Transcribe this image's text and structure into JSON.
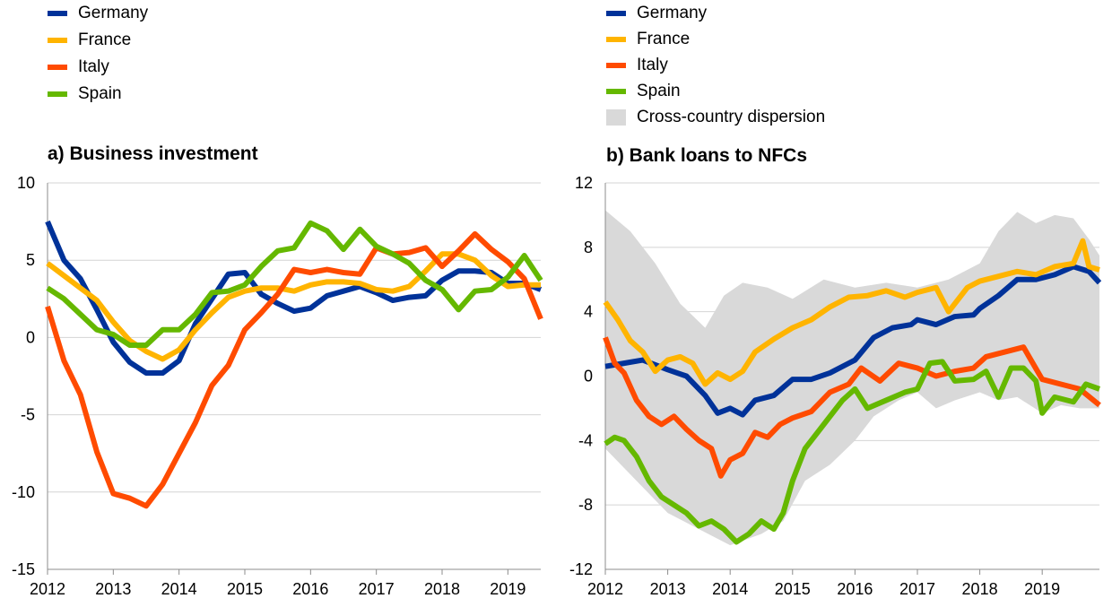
{
  "chart_data": [
    {
      "type": "line",
      "title": "a) Business investment",
      "ylim": [
        -15,
        10
      ],
      "yticks": [
        10,
        5,
        0,
        -5,
        -10,
        -15
      ],
      "xlim": [
        2012,
        2019.5
      ],
      "xticks": [
        2012,
        2013,
        2014,
        2015,
        2016,
        2017,
        2018,
        2019
      ],
      "legend": [
        "Germany",
        "France",
        "Italy",
        "Spain"
      ],
      "x": [
        2012,
        2012.25,
        2012.5,
        2012.75,
        2013,
        2013.25,
        2013.5,
        2013.75,
        2014,
        2014.25,
        2014.5,
        2014.75,
        2015,
        2015.25,
        2015.5,
        2015.75,
        2016,
        2016.25,
        2016.5,
        2016.75,
        2017,
        2017.25,
        2017.5,
        2017.75,
        2018,
        2018.25,
        2018.5,
        2018.75,
        2019,
        2019.25,
        2019.5
      ],
      "series": [
        {
          "name": "Germany",
          "color": "#003299",
          "values": [
            7.5,
            5.0,
            3.8,
            1.8,
            -0.3,
            -1.6,
            -2.3,
            -2.3,
            -1.5,
            0.9,
            2.5,
            4.1,
            4.2,
            2.8,
            2.2,
            1.7,
            1.9,
            2.7,
            3.0,
            3.3,
            2.9,
            2.4,
            2.6,
            2.7,
            3.7,
            4.3,
            4.3,
            4.2,
            3.5,
            3.5,
            3.1
          ]
        },
        {
          "name": "France",
          "color": "#FFB400",
          "values": [
            4.8,
            4.0,
            3.2,
            2.4,
            1.0,
            -0.2,
            -0.9,
            -1.4,
            -0.8,
            0.5,
            1.6,
            2.6,
            3.0,
            3.2,
            3.2,
            3.0,
            3.4,
            3.6,
            3.6,
            3.5,
            3.1,
            3.0,
            3.3,
            4.3,
            5.4,
            5.4,
            5.0,
            4.0,
            3.3,
            3.4,
            3.4
          ]
        },
        {
          "name": "Italy",
          "color": "#FF4B00",
          "values": [
            2.0,
            -1.5,
            -3.7,
            -7.4,
            -10.1,
            -10.4,
            -10.9,
            -9.5,
            -7.5,
            -5.5,
            -3.1,
            -1.8,
            0.5,
            1.6,
            2.8,
            4.4,
            4.2,
            4.4,
            4.2,
            4.1,
            5.8,
            5.4,
            5.5,
            5.8,
            4.6,
            5.6,
            6.7,
            5.7,
            4.9,
            3.8,
            1.2
          ]
        },
        {
          "name": "Spain",
          "color": "#65B800",
          "values": [
            3.2,
            2.5,
            1.5,
            0.5,
            0.2,
            -0.5,
            -0.5,
            0.5,
            0.5,
            1.5,
            2.9,
            3.0,
            3.4,
            4.6,
            5.6,
            5.8,
            7.4,
            6.9,
            5.7,
            7.0,
            5.9,
            5.4,
            4.8,
            3.7,
            3.1,
            1.8,
            3.0,
            3.1,
            3.9,
            5.3,
            3.7
          ]
        }
      ]
    },
    {
      "type": "line",
      "title": "b) Bank loans to NFCs",
      "ylim": [
        -12,
        12
      ],
      "yticks": [
        12,
        8,
        4,
        0,
        -4,
        -8,
        -12
      ],
      "xlim": [
        2012,
        2019.917
      ],
      "xticks": [
        2012,
        2013,
        2014,
        2015,
        2016,
        2017,
        2018,
        2019
      ],
      "legend": [
        "Germany",
        "France",
        "Italy",
        "Spain",
        "Cross-country dispersion"
      ],
      "dispersion_color": "#D9D9D9",
      "series": [
        {
          "name": "Germany",
          "color": "#003299",
          "points": [
            [
              2012,
              0.6
            ],
            [
              2012.3,
              0.8
            ],
            [
              2012.6,
              1.0
            ],
            [
              2013,
              0.4
            ],
            [
              2013.3,
              0.0
            ],
            [
              2013.6,
              -1.2
            ],
            [
              2013.8,
              -2.3
            ],
            [
              2014,
              -2.0
            ],
            [
              2014.2,
              -2.4
            ],
            [
              2014.4,
              -1.5
            ],
            [
              2014.7,
              -1.2
            ],
            [
              2015,
              -0.2
            ],
            [
              2015.3,
              -0.2
            ],
            [
              2015.6,
              0.2
            ],
            [
              2015.9,
              0.8
            ],
            [
              2016,
              1.0
            ],
            [
              2016.3,
              2.4
            ],
            [
              2016.6,
              3.0
            ],
            [
              2016.9,
              3.2
            ],
            [
              2017,
              3.5
            ],
            [
              2017.3,
              3.2
            ],
            [
              2017.6,
              3.7
            ],
            [
              2017.9,
              3.8
            ],
            [
              2018,
              4.2
            ],
            [
              2018.3,
              5.0
            ],
            [
              2018.6,
              6.0
            ],
            [
              2018.9,
              6.0
            ],
            [
              2019.2,
              6.3
            ],
            [
              2019.5,
              6.8
            ],
            [
              2019.75,
              6.5
            ],
            [
              2019.917,
              5.8
            ]
          ]
        },
        {
          "name": "France",
          "color": "#FFB400",
          "points": [
            [
              2012,
              4.6
            ],
            [
              2012.2,
              3.5
            ],
            [
              2012.4,
              2.2
            ],
            [
              2012.6,
              1.5
            ],
            [
              2012.8,
              0.3
            ],
            [
              2013,
              1.0
            ],
            [
              2013.2,
              1.2
            ],
            [
              2013.4,
              0.8
            ],
            [
              2013.6,
              -0.5
            ],
            [
              2013.8,
              0.2
            ],
            [
              2014,
              -0.2
            ],
            [
              2014.2,
              0.3
            ],
            [
              2014.4,
              1.5
            ],
            [
              2014.7,
              2.3
            ],
            [
              2015,
              3.0
            ],
            [
              2015.3,
              3.5
            ],
            [
              2015.6,
              4.3
            ],
            [
              2015.9,
              4.9
            ],
            [
              2016.2,
              5.0
            ],
            [
              2016.5,
              5.3
            ],
            [
              2016.8,
              4.9
            ],
            [
              2017,
              5.2
            ],
            [
              2017.3,
              5.5
            ],
            [
              2017.5,
              4.0
            ],
            [
              2017.8,
              5.5
            ],
            [
              2018,
              5.9
            ],
            [
              2018.3,
              6.2
            ],
            [
              2018.6,
              6.5
            ],
            [
              2018.9,
              6.3
            ],
            [
              2019.2,
              6.8
            ],
            [
              2019.5,
              7.0
            ],
            [
              2019.65,
              8.4
            ],
            [
              2019.75,
              6.8
            ],
            [
              2019.917,
              6.6
            ]
          ]
        },
        {
          "name": "Italy",
          "color": "#FF4B00",
          "points": [
            [
              2012,
              2.4
            ],
            [
              2012.15,
              0.8
            ],
            [
              2012.3,
              0.2
            ],
            [
              2012.5,
              -1.5
            ],
            [
              2012.7,
              -2.5
            ],
            [
              2012.9,
              -3.0
            ],
            [
              2013.1,
              -2.5
            ],
            [
              2013.3,
              -3.3
            ],
            [
              2013.5,
              -4.0
            ],
            [
              2013.7,
              -4.5
            ],
            [
              2013.85,
              -6.2
            ],
            [
              2014,
              -5.2
            ],
            [
              2014.2,
              -4.8
            ],
            [
              2014.4,
              -3.5
            ],
            [
              2014.6,
              -3.8
            ],
            [
              2014.8,
              -3.0
            ],
            [
              2015,
              -2.6
            ],
            [
              2015.3,
              -2.2
            ],
            [
              2015.6,
              -1.0
            ],
            [
              2015.9,
              -0.5
            ],
            [
              2016.1,
              0.5
            ],
            [
              2016.4,
              -0.3
            ],
            [
              2016.7,
              0.8
            ],
            [
              2017,
              0.5
            ],
            [
              2017.3,
              0.0
            ],
            [
              2017.6,
              0.3
            ],
            [
              2017.9,
              0.5
            ],
            [
              2018.1,
              1.2
            ],
            [
              2018.4,
              1.5
            ],
            [
              2018.7,
              1.8
            ],
            [
              2019,
              -0.2
            ],
            [
              2019.3,
              -0.5
            ],
            [
              2019.6,
              -0.8
            ],
            [
              2019.917,
              -1.8
            ]
          ]
        },
        {
          "name": "Spain",
          "color": "#65B800",
          "points": [
            [
              2012,
              -4.2
            ],
            [
              2012.15,
              -3.8
            ],
            [
              2012.3,
              -4.0
            ],
            [
              2012.5,
              -5.0
            ],
            [
              2012.7,
              -6.5
            ],
            [
              2012.9,
              -7.5
            ],
            [
              2013.1,
              -8.0
            ],
            [
              2013.3,
              -8.5
            ],
            [
              2013.5,
              -9.3
            ],
            [
              2013.7,
              -9.0
            ],
            [
              2013.9,
              -9.5
            ],
            [
              2014.1,
              -10.3
            ],
            [
              2014.3,
              -9.8
            ],
            [
              2014.5,
              -9.0
            ],
            [
              2014.7,
              -9.5
            ],
            [
              2014.85,
              -8.5
            ],
            [
              2015,
              -6.5
            ],
            [
              2015.2,
              -4.5
            ],
            [
              2015.4,
              -3.5
            ],
            [
              2015.6,
              -2.5
            ],
            [
              2015.8,
              -1.5
            ],
            [
              2016,
              -0.8
            ],
            [
              2016.2,
              -2.0
            ],
            [
              2016.5,
              -1.5
            ],
            [
              2016.8,
              -1.0
            ],
            [
              2017,
              -0.8
            ],
            [
              2017.2,
              0.8
            ],
            [
              2017.4,
              0.9
            ],
            [
              2017.6,
              -0.3
            ],
            [
              2017.9,
              -0.2
            ],
            [
              2018.1,
              0.3
            ],
            [
              2018.3,
              -1.3
            ],
            [
              2018.5,
              0.5
            ],
            [
              2018.7,
              0.5
            ],
            [
              2018.9,
              -0.3
            ],
            [
              2019,
              -2.3
            ],
            [
              2019.2,
              -1.3
            ],
            [
              2019.5,
              -1.6
            ],
            [
              2019.7,
              -0.5
            ],
            [
              2019.917,
              -0.8
            ]
          ]
        }
      ],
      "dispersion_upper": [
        [
          2012,
          10.3
        ],
        [
          2012.4,
          9.0
        ],
        [
          2012.8,
          7.0
        ],
        [
          2013.2,
          4.5
        ],
        [
          2013.6,
          3.0
        ],
        [
          2013.9,
          5.0
        ],
        [
          2014.2,
          5.8
        ],
        [
          2014.6,
          5.5
        ],
        [
          2015,
          4.8
        ],
        [
          2015.5,
          6.0
        ],
        [
          2016,
          5.5
        ],
        [
          2016.5,
          5.8
        ],
        [
          2017,
          5.5
        ],
        [
          2017.5,
          6.0
        ],
        [
          2018,
          7.0
        ],
        [
          2018.3,
          9.0
        ],
        [
          2018.6,
          10.2
        ],
        [
          2018.9,
          9.5
        ],
        [
          2019.2,
          10.0
        ],
        [
          2019.5,
          9.8
        ],
        [
          2019.75,
          8.5
        ],
        [
          2019.917,
          7.5
        ]
      ],
      "dispersion_lower": [
        [
          2012,
          -4.5
        ],
        [
          2012.5,
          -6.5
        ],
        [
          2013,
          -8.5
        ],
        [
          2013.5,
          -9.5
        ],
        [
          2014,
          -10.5
        ],
        [
          2014.5,
          -9.8
        ],
        [
          2014.85,
          -9.0
        ],
        [
          2015.2,
          -6.5
        ],
        [
          2015.6,
          -5.5
        ],
        [
          2016,
          -4.0
        ],
        [
          2016.3,
          -2.5
        ],
        [
          2016.7,
          -1.5
        ],
        [
          2017,
          -1.0
        ],
        [
          2017.3,
          -2.0
        ],
        [
          2017.6,
          -1.5
        ],
        [
          2018,
          -1.0
        ],
        [
          2018.3,
          -1.5
        ],
        [
          2018.6,
          -1.3
        ],
        [
          2019,
          -2.3
        ],
        [
          2019.3,
          -1.8
        ],
        [
          2019.6,
          -2.0
        ],
        [
          2019.917,
          -2.0
        ]
      ]
    }
  ]
}
